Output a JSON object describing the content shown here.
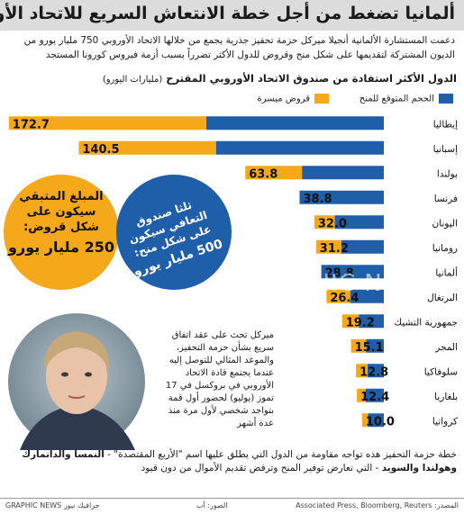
{
  "header": {
    "title": "ألمانيا تضغط من أجل خطة الانتعاش السريع للاتحاد الأوروبي",
    "subtitle": "دعمت المستشارة الألمانية أنجيلا ميركل حزمة تحفيز جذرية يجمع من خلالها الاتحاد الأوروبي 750 مليار يورو من الديون المشتركة لتقديمها على شكل منح وقروض للدول الأكثر تضرراً بسبب أزمة فيروس كورونا المستجد"
  },
  "chart_data": {
    "type": "bar",
    "orientation": "horizontal",
    "stacked": true,
    "title": "الدول الأكثر استفادة من صندوق الاتحاد الأوروبي المقترح",
    "unit": "(مليارات اليورو)",
    "categories": [
      "إيطاليا",
      "إسبانيا",
      "بولندا",
      "فرنسا",
      "اليونان",
      "رومانيا",
      "ألمانيا",
      "البرتغال",
      "جمهورية التشيك",
      "المجر",
      "سلوفاكيا",
      "بلغاريا",
      "كرواتيا"
    ],
    "totals": [
      172.7,
      140.5,
      63.8,
      38.8,
      32.0,
      31.2,
      28.8,
      26.4,
      19.2,
      15.1,
      12.8,
      12.4,
      10.0
    ],
    "total_labels": [
      "172.7",
      "140.5",
      "63.8",
      "38.8",
      "32.0",
      "31.2",
      "28.8",
      "26.4",
      "19.2",
      "15.1",
      "12.8",
      "12.4",
      "10.0"
    ],
    "series": [
      {
        "name": "الحجم المتوقع للمنح",
        "color": "#1f5ea8",
        "values": [
          81.8,
          77.3,
          37.7,
          38.8,
          22.6,
          19.6,
          28.8,
          15.5,
          11.5,
          8.1,
          7.5,
          8.3,
          7.3
        ]
      },
      {
        "name": "قروض ميسرة",
        "color": "#f6a81b",
        "values": [
          90.9,
          63.2,
          26.1,
          0,
          9.4,
          11.6,
          0,
          10.9,
          7.7,
          7.0,
          5.3,
          4.1,
          2.7
        ]
      }
    ],
    "xlim": [
      0,
      180
    ],
    "legend": "top",
    "grid": false
  },
  "annotations": {
    "loan_circle": {
      "line1": "المبلغ المتبقي",
      "line2": "سيكون على",
      "line3": "شكل قروض:",
      "amount": "250 مليار يورو",
      "color": "#f6a81b"
    },
    "grant_circle": {
      "line1": "ثلثا صندوق",
      "line2": "التعافي سيكون",
      "line3": "على شكل منح:",
      "amount": "500 مليار يورو",
      "color": "#1f5ea8"
    },
    "photo_caption": "ميركل تحث على عقد اتفاق سريع بشأن حزمة التحفيز، والموعد المثالي للتوصل إليه عندما يجتمع قادة الاتحاد الأوروبي في بروكسل في 17 تموز (يوليو) لحضور أول قمة بتواجد شخصي لأول مرة منذ عدة أشهر",
    "watermark": "GRAPHIC NEWS"
  },
  "footnote": {
    "text_before": "خطة حزمة التحفيز هذه تواجه مقاومة من الدول التي يطلق عليها اسم \"الأربع المقتصدة\" - ",
    "bold_part": "النمسا والدانمارك وهولندا والسويد",
    "text_after": " - التي تعارض توفير المنح وترفض تقديم الأموال من دون قيود"
  },
  "footer": {
    "brand": "GRAPHIC NEWS جرافيك نيوز",
    "photo_credit": "الصور: أب",
    "sources": "Associated Press, Bloomberg, Reuters :المصدر"
  }
}
